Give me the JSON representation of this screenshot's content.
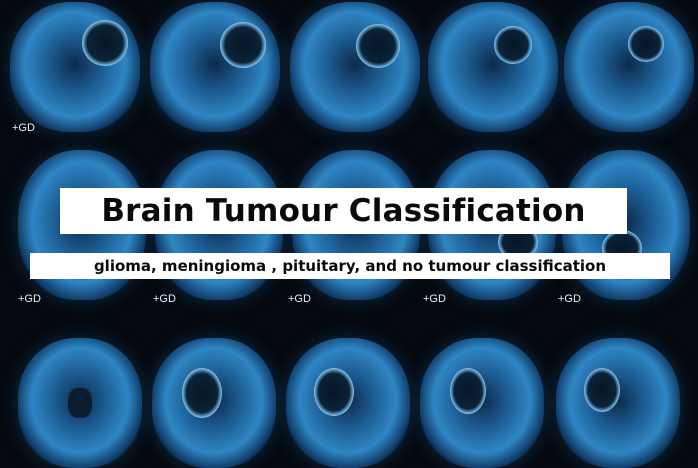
{
  "overlay": {
    "title": "Brain Tumour Classification",
    "subtitle": "glioma, meningioma , pituitary, and no tumour classification"
  },
  "scan_labels": {
    "gd": "+GD"
  },
  "colors": {
    "background": "#05090f",
    "scan_blue": "#2f86c4",
    "label_box": "#ffffff",
    "label_text": "#0a0a0a"
  }
}
